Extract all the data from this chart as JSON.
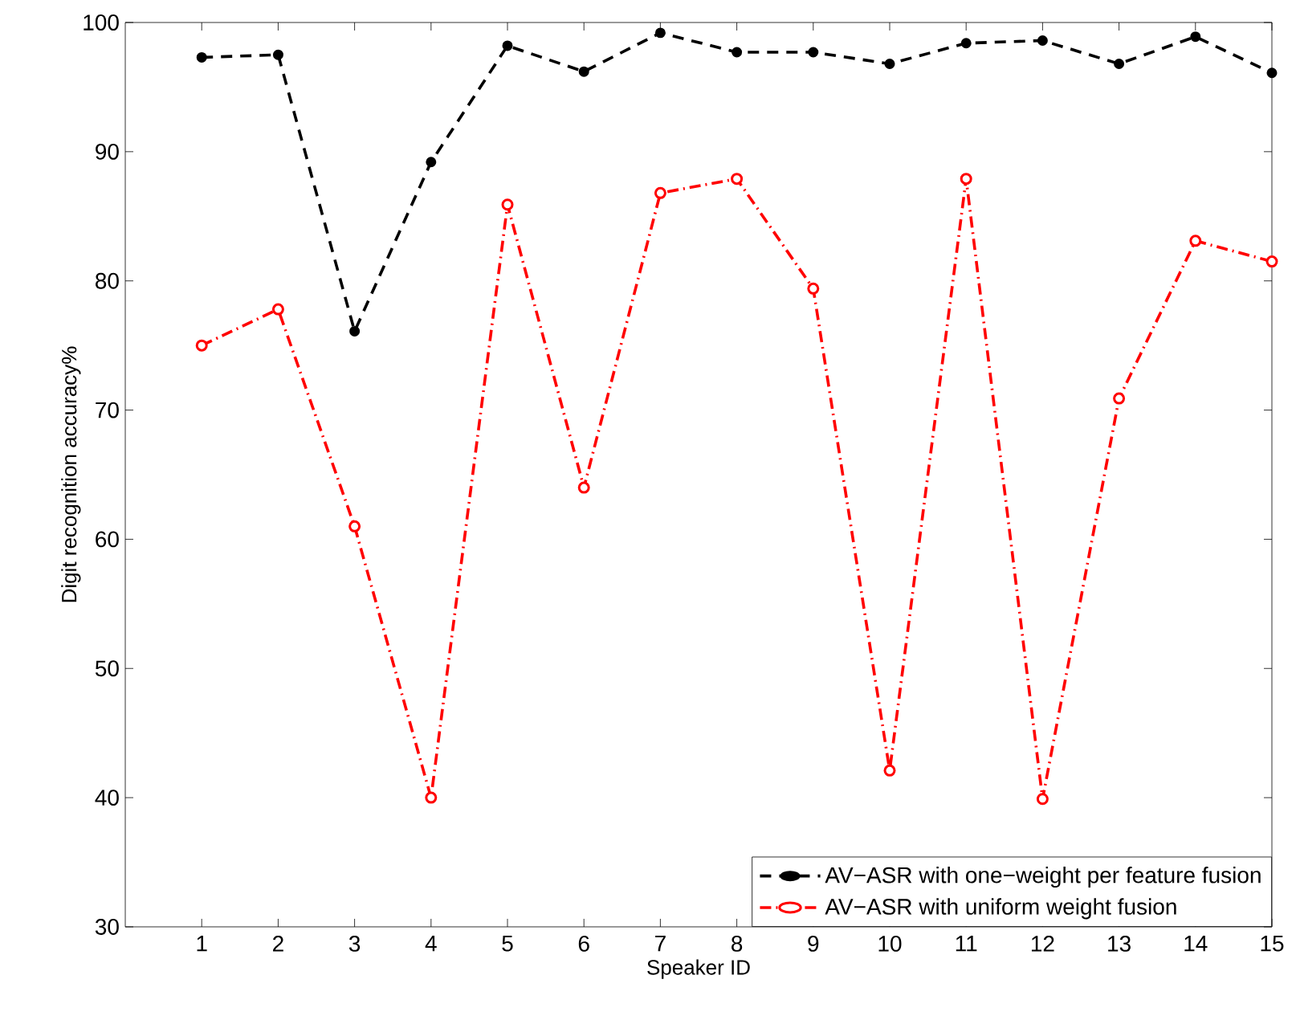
{
  "chart_data": {
    "type": "line",
    "xlabel": "Speaker ID",
    "ylabel": "Digit recognition accuracy%",
    "x": [
      1,
      2,
      3,
      4,
      5,
      6,
      7,
      8,
      9,
      10,
      11,
      12,
      13,
      14,
      15
    ],
    "xlim": [
      0,
      15
    ],
    "xticks": [
      1,
      2,
      3,
      4,
      5,
      6,
      7,
      8,
      9,
      10,
      11,
      12,
      13,
      14,
      15
    ],
    "ylim": [
      30,
      100
    ],
    "yticks": [
      30,
      40,
      50,
      60,
      70,
      80,
      90,
      100
    ],
    "legend": "bottom right",
    "grid": false,
    "series": [
      {
        "name": "AV−ASR with one−weight per feature fusion",
        "color": "#000000",
        "marker": "circle",
        "line_style": "dashed",
        "values": [
          97.3,
          97.5,
          76.1,
          89.2,
          98.2,
          96.2,
          99.2,
          97.7,
          97.7,
          96.8,
          98.4,
          98.6,
          96.8,
          98.9,
          96.1
        ]
      },
      {
        "name": "AV−ASR with uniform weight fusion",
        "color": "#ff0000",
        "marker": "circle",
        "line_style": "dashdot",
        "values": [
          75.0,
          77.8,
          61.0,
          40.0,
          85.9,
          64.0,
          86.8,
          87.9,
          79.4,
          42.1,
          87.9,
          39.9,
          70.9,
          83.1,
          81.5
        ]
      }
    ]
  }
}
